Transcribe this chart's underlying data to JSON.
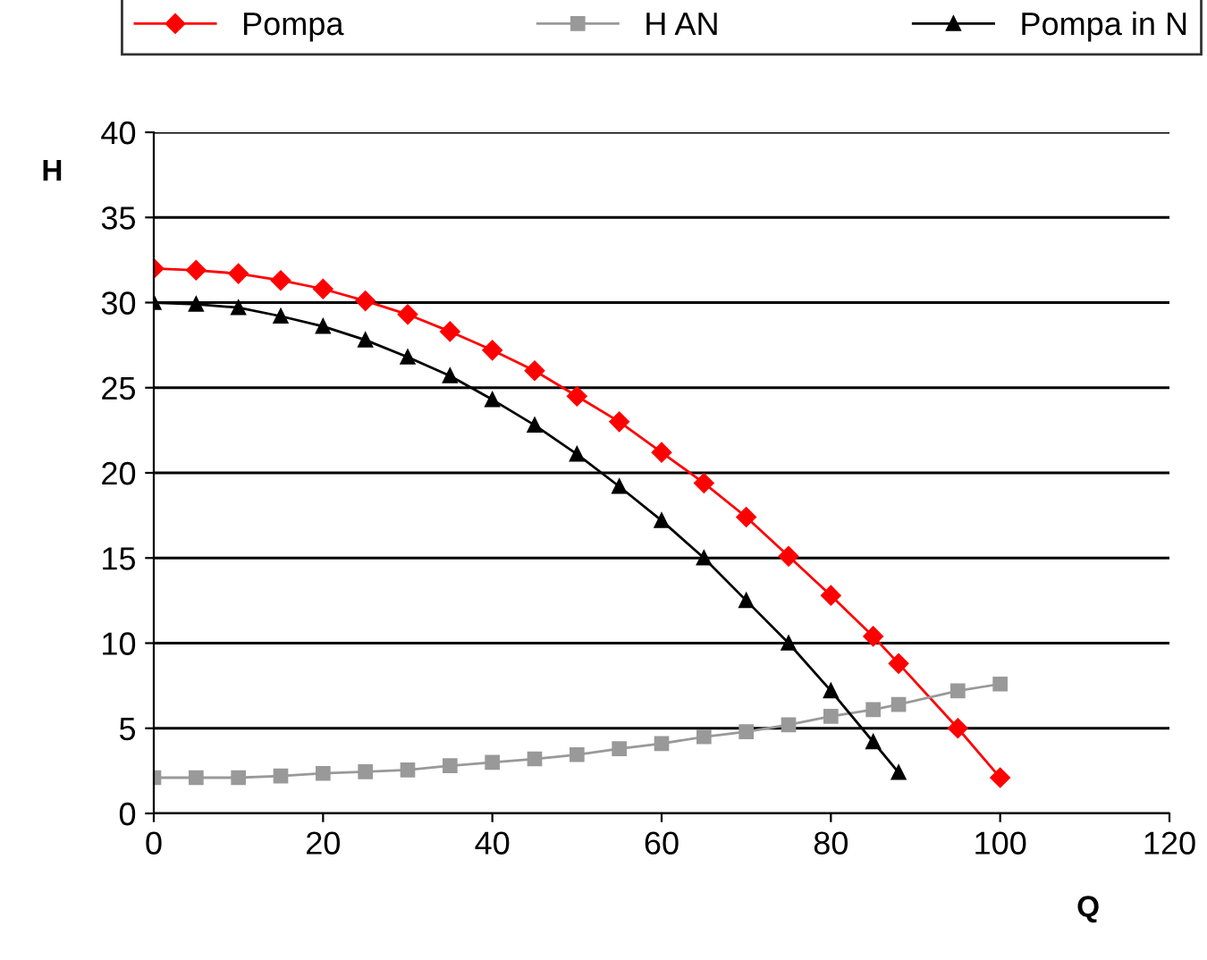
{
  "chart_data": {
    "type": "line",
    "xlabel": "Q",
    "ylabel": "H",
    "xlim": [
      0,
      120
    ],
    "xticks": [
      0,
      20,
      40,
      60,
      80,
      100,
      120
    ],
    "ylim": [
      0,
      40
    ],
    "yticks": [
      0,
      5,
      10,
      15,
      20,
      25,
      30,
      35,
      40
    ],
    "grid": "y",
    "legend": "top",
    "series": [
      {
        "name": "Pompa",
        "color": "#ff0000",
        "marker": "diamond",
        "x": [
          0,
          5,
          10,
          15,
          20,
          25,
          30,
          35,
          40,
          45,
          50,
          55,
          60,
          65,
          70,
          75,
          80,
          85,
          88,
          95,
          100
        ],
        "values": [
          32,
          31.9,
          31.7,
          31.3,
          30.8,
          30.1,
          29.3,
          28.3,
          27.2,
          26.0,
          24.5,
          23.0,
          21.2,
          19.4,
          17.4,
          15.1,
          12.8,
          10.4,
          8.8,
          5.0,
          2.1
        ]
      },
      {
        "name": "H AN",
        "color": "#999999",
        "marker": "square",
        "x": [
          0,
          5,
          10,
          15,
          20,
          25,
          30,
          35,
          40,
          45,
          50,
          55,
          60,
          65,
          70,
          75,
          80,
          85,
          88,
          95,
          100
        ],
        "values": [
          2.1,
          2.1,
          2.1,
          2.2,
          2.35,
          2.45,
          2.55,
          2.8,
          3.0,
          3.2,
          3.45,
          3.8,
          4.1,
          4.5,
          4.8,
          5.2,
          5.7,
          6.1,
          6.4,
          7.2,
          7.6
        ]
      },
      {
        "name": "Pompa in N",
        "color": "#000000",
        "marker": "triangle",
        "x": [
          0,
          5,
          10,
          15,
          20,
          25,
          30,
          35,
          40,
          45,
          50,
          55,
          60,
          65,
          70,
          75,
          80,
          85,
          88
        ],
        "values": [
          30,
          29.9,
          29.7,
          29.2,
          28.6,
          27.8,
          26.8,
          25.7,
          24.3,
          22.8,
          21.1,
          19.2,
          17.2,
          15.0,
          12.5,
          10.0,
          7.2,
          4.2,
          2.4
        ]
      }
    ]
  }
}
